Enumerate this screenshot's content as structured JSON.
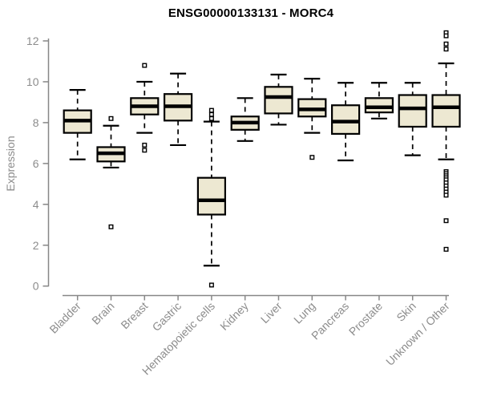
{
  "page": {
    "background": "#ffffff"
  },
  "chart_data": {
    "type": "boxplot",
    "title": "ENSG00000133131 - MORC4",
    "xlabel": "",
    "ylabel": "Expression",
    "ylim": [
      0,
      12
    ],
    "yticks": [
      0,
      2,
      4,
      6,
      8,
      10,
      12
    ],
    "grid": false,
    "legend": "none",
    "colors": {
      "box_fill": "#EDE8D2",
      "box_stroke": "#000000",
      "median": "#000000",
      "whisker": "#000000",
      "axis": "#878787",
      "tick_label": "#8c8c8c",
      "title": "#000000"
    },
    "categories": [
      "Bladder",
      "Brain",
      "Breast",
      "Gastric",
      "Hematopoietic cells",
      "Kidney",
      "Liver",
      "Lung",
      "Pancreas",
      "Prostate",
      "Skin",
      "Unknown / Other"
    ],
    "boxes": [
      {
        "label": "Bladder",
        "whisker_low": 6.2,
        "q1": 7.5,
        "median": 8.1,
        "q3": 8.6,
        "whisker_high": 9.6,
        "outliers": []
      },
      {
        "label": "Brain",
        "whisker_low": 5.8,
        "q1": 6.1,
        "median": 6.5,
        "q3": 6.8,
        "whisker_high": 7.85,
        "outliers": [
          8.2,
          2.9
        ]
      },
      {
        "label": "Breast",
        "whisker_low": 7.5,
        "q1": 8.4,
        "median": 8.8,
        "q3": 9.2,
        "whisker_high": 10.0,
        "outliers": [
          10.8,
          6.9,
          6.65
        ]
      },
      {
        "label": "Gastric",
        "whisker_low": 6.9,
        "q1": 8.1,
        "median": 8.8,
        "q3": 9.4,
        "whisker_high": 10.4,
        "outliers": []
      },
      {
        "label": "Hematopoietic cells",
        "whisker_low": 1.0,
        "q1": 3.5,
        "median": 4.2,
        "q3": 5.3,
        "whisker_high": 8.05,
        "outliers": [
          8.6,
          8.4,
          8.2,
          0.05
        ]
      },
      {
        "label": "Kidney",
        "whisker_low": 7.1,
        "q1": 7.65,
        "median": 8.0,
        "q3": 8.3,
        "whisker_high": 9.2,
        "outliers": []
      },
      {
        "label": "Liver",
        "whisker_low": 7.9,
        "q1": 8.45,
        "median": 9.25,
        "q3": 9.75,
        "whisker_high": 10.35,
        "outliers": []
      },
      {
        "label": "Lung",
        "whisker_low": 7.5,
        "q1": 8.3,
        "median": 8.65,
        "q3": 9.15,
        "whisker_high": 10.15,
        "outliers": [
          6.3
        ]
      },
      {
        "label": "Pancreas",
        "whisker_low": 6.15,
        "q1": 7.45,
        "median": 8.05,
        "q3": 8.85,
        "whisker_high": 9.95,
        "outliers": []
      },
      {
        "label": "Prostate",
        "whisker_low": 8.2,
        "q1": 8.5,
        "median": 8.75,
        "q3": 9.2,
        "whisker_high": 9.95,
        "outliers": []
      },
      {
        "label": "Skin",
        "whisker_low": 6.4,
        "q1": 7.8,
        "median": 8.7,
        "q3": 9.35,
        "whisker_high": 9.95,
        "outliers": []
      },
      {
        "label": "Unknown / Other",
        "whisker_low": 6.2,
        "q1": 7.8,
        "median": 8.75,
        "q3": 9.35,
        "whisker_high": 10.9,
        "outliers": [
          12.4,
          12.25,
          11.85,
          11.6,
          5.6,
          5.5,
          5.4,
          5.3,
          5.2,
          5.05,
          4.9,
          4.75,
          4.6,
          4.45,
          3.2,
          1.8
        ]
      }
    ]
  }
}
